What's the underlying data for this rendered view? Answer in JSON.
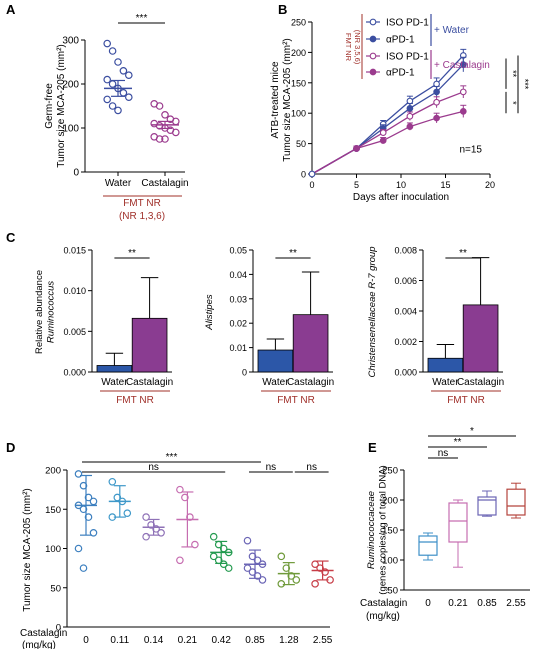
{
  "chart_data": [
    {
      "panel": "A",
      "type": "scatter",
      "ylabel": [
        "Germ-free",
        "Tumor size MCA-205 (mm²)"
      ],
      "ylim": [
        0,
        300
      ],
      "yticks": [
        0,
        100,
        200,
        300
      ],
      "categories": [
        "Water",
        "Castalagin"
      ],
      "colors": [
        "#3b4ea0",
        "#9b3b8e"
      ],
      "points": [
        [
          292,
          275,
          250,
          230,
          220,
          210,
          200,
          190,
          180,
          170,
          165,
          150,
          140
        ],
        [
          155,
          150,
          130,
          120,
          115,
          110,
          105,
          100,
          95,
          90,
          80,
          75,
          75
        ]
      ],
      "means": [
        190,
        107
      ],
      "sem": [
        18,
        8
      ],
      "significance": "***",
      "footer_label": "FMT NR",
      "footer_sub": "(NR 1,3,6)",
      "footer_color": "#a0302a"
    },
    {
      "panel": "B",
      "type": "line",
      "xlabel": "Days after inoculation",
      "ylabel": [
        "ATB-treated mice",
        "Tumor size MCA-205 (mm²)"
      ],
      "xlim": [
        0,
        20
      ],
      "ylim": [
        0,
        250
      ],
      "xticks": [
        0,
        5,
        10,
        15,
        20
      ],
      "yticks": [
        0,
        50,
        100,
        150,
        200,
        250
      ],
      "x": [
        5,
        8,
        11,
        14,
        17
      ],
      "series": [
        {
          "name": "ISO PD-1",
          "values": [
            42,
            82,
            120,
            148,
            195
          ],
          "err": [
            4,
            6,
            8,
            10,
            10
          ],
          "color": "#3b4ea0",
          "filled": false
        },
        {
          "name": "αPD-1",
          "values": [
            42,
            75,
            108,
            135,
            180
          ],
          "err": [
            4,
            6,
            8,
            9,
            12
          ],
          "color": "#3b4ea0",
          "filled": true
        },
        {
          "name": "ISO PD-1",
          "values": [
            42,
            68,
            95,
            118,
            135
          ],
          "err": [
            4,
            5,
            7,
            9,
            10
          ],
          "color": "#9b3b8e",
          "filled": false
        },
        {
          "name": "αPD-1",
          "values": [
            42,
            55,
            78,
            92,
            103
          ],
          "err": [
            4,
            5,
            6,
            8,
            10
          ],
          "color": "#9b3b8e",
          "filled": true
        }
      ],
      "legend_group_labels": [
        "+ Water",
        "+ Castalagin"
      ],
      "side_label": "FMT NR\n(NR 3,5,6)",
      "brackets": [
        "**",
        "*",
        "***"
      ],
      "annotation": "n=15"
    },
    {
      "panel": "C1",
      "type": "bar",
      "ylabel": [
        "Relative abundance",
        "Ruminococcus"
      ],
      "categories": [
        "Water",
        "Castalagin"
      ],
      "values": [
        0.0008,
        0.0066
      ],
      "err": [
        0.0015,
        0.005
      ],
      "ylim": [
        0,
        0.015
      ],
      "yticks": [
        0.0,
        0.005,
        0.01,
        0.015
      ],
      "ytick_labels": [
        "0.000",
        "0.005",
        "0.010",
        "0.015"
      ],
      "colors": [
        "#2c57a8",
        "#8a3c91"
      ],
      "significance": "**",
      "footer_label": "FMT NR"
    },
    {
      "panel": "C2",
      "type": "bar",
      "ylabel": [
        "Alistipes"
      ],
      "categories": [
        "Water",
        "Castalagin"
      ],
      "values": [
        0.009,
        0.0235
      ],
      "err": [
        0.0045,
        0.0175
      ],
      "ylim": [
        0,
        0.05
      ],
      "yticks": [
        0,
        0.01,
        0.02,
        0.03,
        0.04,
        0.05
      ],
      "ytick_labels": [
        "0",
        "0.01",
        "0.02",
        "0.03",
        "0.04",
        "0.05"
      ],
      "colors": [
        "#2c57a8",
        "#8a3c91"
      ],
      "significance": "**",
      "footer_label": "FMT NR"
    },
    {
      "panel": "C3",
      "type": "bar",
      "ylabel": [
        "Christensenellaceae R-7 group"
      ],
      "categories": [
        "Water",
        "Castalagin"
      ],
      "values": [
        0.0009,
        0.0044
      ],
      "err": [
        0.0009,
        0.0031
      ],
      "ylim": [
        0,
        0.008
      ],
      "yticks": [
        0,
        0.002,
        0.004,
        0.006,
        0.008
      ],
      "ytick_labels": [
        "0.000",
        "0.002",
        "0.004",
        "0.006",
        "0.008"
      ],
      "colors": [
        "#2c57a8",
        "#8a3c91"
      ],
      "significance": "**",
      "footer_label": "FMT NR"
    },
    {
      "panel": "D",
      "type": "scatter",
      "ylabel": [
        "Tumor size MCA-205 (mm²)"
      ],
      "ylim": [
        0,
        200
      ],
      "yticks": [
        0,
        50,
        100,
        150,
        200
      ],
      "xaxis_title": [
        "Castalagin",
        "(mg/kg)"
      ],
      "categories": [
        "0",
        "0.11",
        "0.14",
        "0.21",
        "0.42",
        "0.85",
        "1.28",
        "2.55"
      ],
      "colors": [
        "#3c7fbf",
        "#3e98c9",
        "#8f72b7",
        "#c66db0",
        "#239a4f",
        "#6b65b5",
        "#6f9a3a",
        "#c73d47"
      ],
      "points": [
        [
          195,
          180,
          165,
          160,
          155,
          150,
          140,
          120,
          100,
          75
        ],
        [
          185,
          165,
          160,
          145,
          140
        ],
        [
          140,
          130,
          125,
          120,
          115
        ],
        [
          175,
          165,
          140,
          105,
          85
        ],
        [
          115,
          105,
          100,
          95,
          90,
          85,
          80,
          75
        ],
        [
          110,
          90,
          85,
          80,
          75,
          70,
          65,
          60
        ],
        [
          90,
          75,
          65,
          60,
          55
        ],
        [
          80,
          75,
          70,
          60,
          55
        ]
      ],
      "means": [
        155,
        160,
        127,
        137,
        95,
        80,
        68,
        72
      ],
      "sd": [
        38,
        20,
        10,
        35,
        14,
        18,
        14,
        12
      ],
      "significance": [
        {
          "from": 0,
          "to": 5,
          "label": "***"
        },
        {
          "from": 0,
          "to": 4,
          "label": "ns"
        },
        {
          "from": 5,
          "to": 6,
          "label": "ns"
        },
        {
          "from": 6,
          "to": 7,
          "label": "ns"
        }
      ]
    },
    {
      "panel": "E",
      "type": "box",
      "ylabel": [
        "Ruminococcaceae",
        "(genes copies/ng of total DNA)"
      ],
      "ylim": [
        50,
        250
      ],
      "yticks": [
        50,
        100,
        150,
        200,
        250
      ],
      "xaxis_title": [
        "Castalagin",
        "(mg/kg)"
      ],
      "categories": [
        "0",
        "0.21",
        "0.85",
        "2.55"
      ],
      "colors": [
        "#3e8fc7",
        "#c66db0",
        "#6b65b5",
        "#b5443c"
      ],
      "boxes": [
        {
          "min": 100,
          "q1": 108,
          "median": 130,
          "q3": 140,
          "max": 145
        },
        {
          "min": 88,
          "q1": 130,
          "median": 165,
          "q3": 195,
          "max": 200
        },
        {
          "min": 173,
          "q1": 175,
          "median": 200,
          "q3": 205,
          "max": 215
        },
        {
          "min": 170,
          "q1": 175,
          "median": 190,
          "q3": 218,
          "max": 228
        }
      ],
      "significance": [
        {
          "from": 0,
          "to": 1,
          "label": "ns"
        },
        {
          "from": 0,
          "to": 2,
          "label": "**"
        },
        {
          "from": 0,
          "to": 3,
          "label": "*"
        }
      ]
    }
  ],
  "panel_letters": [
    "A",
    "B",
    "C",
    "D",
    "E"
  ]
}
